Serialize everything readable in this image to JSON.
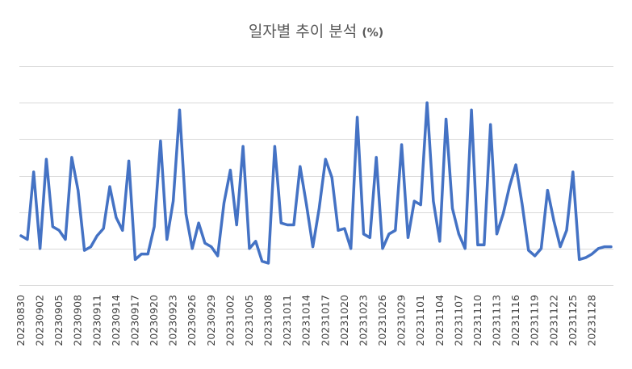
{
  "chart_data": {
    "type": "line",
    "title": "일자별 추이 분석",
    "title_unit": "(%)",
    "xlabel": "",
    "ylabel": "",
    "y_axis_labels_shown": false,
    "ylim": [
      0,
      6
    ],
    "grid": "horizontal",
    "gridline_values": [
      0,
      1,
      2,
      3,
      4,
      5,
      6
    ],
    "legend": "none",
    "line_color": "#4472c4",
    "x_tick_labels": [
      "20230830",
      "20230902",
      "20230905",
      "20230908",
      "20230911",
      "20230914",
      "20230917",
      "20230920",
      "20230923",
      "20230926",
      "20230929",
      "20231002",
      "20231005",
      "20231008",
      "20231011",
      "20231014",
      "20231017",
      "20231020",
      "20231023",
      "20231026",
      "20231029",
      "20231101",
      "20231104",
      "20231107",
      "20231110",
      "20231113",
      "20231116",
      "20231119",
      "20231122",
      "20231125",
      "20231128"
    ],
    "x": [
      "20230830",
      "20230831",
      "20230901",
      "20230902",
      "20230903",
      "20230904",
      "20230905",
      "20230906",
      "20230907",
      "20230908",
      "20230909",
      "20230910",
      "20230911",
      "20230912",
      "20230913",
      "20230914",
      "20230915",
      "20230916",
      "20230917",
      "20230918",
      "20230919",
      "20230920",
      "20230921",
      "20230922",
      "20230923",
      "20230924",
      "20230925",
      "20230926",
      "20230927",
      "20230928",
      "20230929",
      "20230930",
      "20231001",
      "20231002",
      "20231003",
      "20231004",
      "20231005",
      "20231006",
      "20231007",
      "20231008",
      "20231009",
      "20231010",
      "20231011",
      "20231012",
      "20231013",
      "20231014",
      "20231015",
      "20231016",
      "20231017",
      "20231018",
      "20231019",
      "20231020",
      "20231021",
      "20231022",
      "20231023",
      "20231024",
      "20231025",
      "20231026",
      "20231027",
      "20231028",
      "20231029",
      "20231030",
      "20231031",
      "20231101",
      "20231102",
      "20231103",
      "20231104",
      "20231105",
      "20231106",
      "20231107",
      "20231108",
      "20231109",
      "20231110",
      "20231111",
      "20231112",
      "20231113",
      "20231114",
      "20231115",
      "20231116",
      "20231117",
      "20231118",
      "20231119",
      "20231120",
      "20231121",
      "20231122",
      "20231123",
      "20231124",
      "20231125",
      "20231126",
      "20231127",
      "20231128",
      "20231129",
      "20231130",
      "20231201"
    ],
    "series": [
      {
        "values": [
          1.35,
          1.25,
          3.1,
          1.0,
          3.45,
          1.6,
          1.5,
          1.25,
          3.5,
          2.6,
          0.95,
          1.05,
          1.35,
          1.55,
          2.7,
          1.85,
          1.5,
          3.4,
          0.7,
          0.85,
          0.85,
          1.6,
          3.95,
          1.25,
          2.3,
          4.8,
          1.95,
          1.0,
          1.7,
          1.15,
          1.05,
          0.8,
          2.25,
          3.15,
          1.65,
          3.8,
          1.0,
          1.2,
          0.65,
          0.6,
          3.8,
          1.7,
          1.65,
          1.65,
          3.25,
          2.2,
          1.05,
          2.1,
          3.45,
          2.95,
          1.5,
          1.55,
          1.0,
          4.6,
          1.4,
          1.3,
          3.5,
          1.0,
          1.4,
          1.5,
          3.85,
          1.3,
          2.3,
          2.2,
          5.0,
          2.3,
          1.2,
          4.55,
          2.1,
          1.4,
          1.0,
          4.8,
          1.1,
          1.1,
          4.4,
          1.4,
          1.95,
          2.7,
          3.3,
          2.2,
          0.95,
          0.8,
          1.0,
          2.6,
          1.75,
          1.05,
          1.5,
          3.1,
          0.7,
          0.75,
          0.85,
          1.0,
          1.05,
          1.05
        ]
      }
    ]
  }
}
